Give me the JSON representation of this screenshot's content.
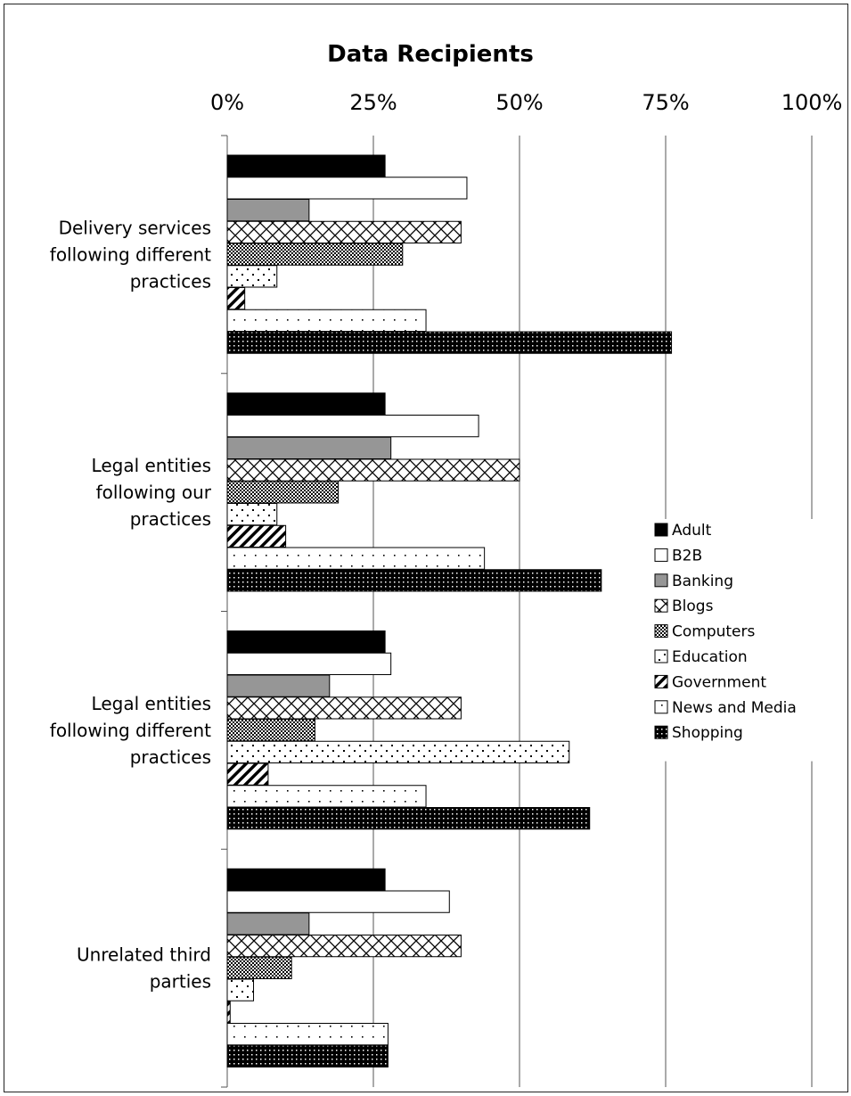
{
  "chart_data": {
    "type": "bar",
    "orientation": "horizontal",
    "title": "Data Recipients",
    "xlim": [
      0,
      100
    ],
    "x_ticks": [
      "0%",
      "25%",
      "50%",
      "75%",
      "100%"
    ],
    "grid": true,
    "legend_position": "right",
    "categories": [
      [
        "Delivery services",
        "following different",
        "practices"
      ],
      [
        "Legal entities",
        "following our",
        "practices"
      ],
      [
        "Legal entities",
        "following different",
        "practices"
      ],
      [
        "Unrelated third",
        "parties"
      ]
    ],
    "series": [
      {
        "name": "Adult",
        "values": [
          27,
          27,
          27,
          27
        ]
      },
      {
        "name": "B2B",
        "values": [
          41,
          43,
          28,
          38
        ]
      },
      {
        "name": "Banking",
        "values": [
          14,
          28,
          17.5,
          14
        ]
      },
      {
        "name": "Blogs",
        "values": [
          40,
          50,
          40,
          40
        ]
      },
      {
        "name": "Computers",
        "values": [
          30,
          19,
          15,
          11
        ]
      },
      {
        "name": "Education",
        "values": [
          8.5,
          8.5,
          58.5,
          4.5
        ]
      },
      {
        "name": "Government",
        "values": [
          3,
          10,
          7,
          0.5
        ]
      },
      {
        "name": "News and Media",
        "values": [
          34,
          44,
          34,
          27.5
        ]
      },
      {
        "name": "Shopping",
        "values": [
          76,
          64,
          62,
          27.5
        ]
      }
    ]
  },
  "styles": {
    "Adult": "solid-black",
    "B2B": "white",
    "Banking": "solid-gray",
    "Blogs": "crosshatch",
    "Computers": "dense-checker",
    "Education": "sparse-dash",
    "Government": "diagonal-stripes",
    "News and Media": "sparse-dots",
    "Shopping": "dark-dotted"
  }
}
